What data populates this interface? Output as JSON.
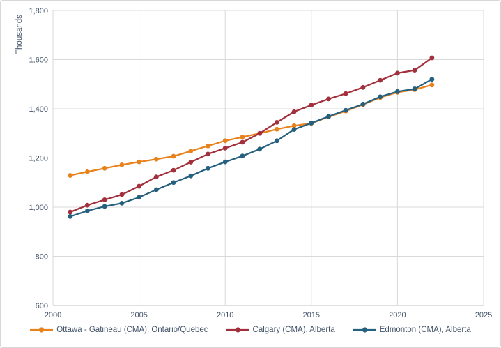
{
  "chart": {
    "y_axis_title": "Thousands",
    "text_color": "#44546A",
    "gridline_color": "#D9D9D9",
    "axis_line_color": "#BFBFBF",
    "background_color": "#FFFFFF"
  },
  "chart_data": {
    "type": "line",
    "title": "",
    "xlabel": "",
    "ylabel": "Thousands",
    "xlim": [
      2000,
      2025
    ],
    "ylim": [
      600,
      1800
    ],
    "grid": true,
    "legend_position": "bottom",
    "x_tick_values": [
      2000,
      2005,
      2010,
      2015,
      2020,
      2025
    ],
    "x_tick_labels": [
      "2000",
      "2005",
      "2010",
      "2015",
      "2020",
      "2025"
    ],
    "y_tick_values": [
      600,
      800,
      1000,
      1200,
      1400,
      1600,
      1800
    ],
    "y_tick_labels": [
      "600",
      "800",
      "1,000",
      "1,200",
      "1,400",
      "1,600",
      "1,800"
    ],
    "x": [
      2001,
      2002,
      2003,
      2004,
      2005,
      2006,
      2007,
      2008,
      2009,
      2010,
      2011,
      2012,
      2013,
      2014,
      2015,
      2016,
      2017,
      2018,
      2019,
      2020,
      2021,
      2022
    ],
    "series": [
      {
        "name": "Ottawa - Gatineau (CMA), Ontario/Quebec",
        "color": "#E8821D",
        "values": [
          1129,
          1144,
          1158,
          1172,
          1184,
          1195,
          1207,
          1228,
          1249,
          1270,
          1285,
          1300,
          1317,
          1331,
          1341,
          1367,
          1391,
          1417,
          1446,
          1467,
          1478,
          1497
        ]
      },
      {
        "name": "Calgary (CMA), Alberta",
        "color": "#A2303C",
        "values": [
          980,
          1008,
          1030,
          1051,
          1085,
          1123,
          1150,
          1183,
          1216,
          1240,
          1264,
          1300,
          1345,
          1388,
          1415,
          1440,
          1462,
          1487,
          1516,
          1545,
          1557,
          1607
        ]
      },
      {
        "name": "Edmonton (CMA), Alberta",
        "color": "#26607F",
        "values": [
          962,
          985,
          1003,
          1016,
          1040,
          1071,
          1100,
          1127,
          1158,
          1184,
          1208,
          1236,
          1270,
          1316,
          1342,
          1369,
          1394,
          1419,
          1449,
          1470,
          1481,
          1520
        ]
      }
    ]
  }
}
